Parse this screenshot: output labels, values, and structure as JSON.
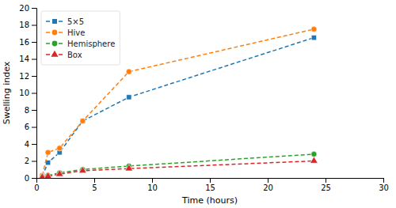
{
  "chart_data": {
    "type": "line",
    "xlabel": "Time (hours)",
    "ylabel": "Swelling index",
    "xlim": [
      0,
      30
    ],
    "ylim": [
      0,
      20
    ],
    "xticks": [
      0,
      5,
      10,
      15,
      20,
      25,
      30
    ],
    "yticks": [
      0,
      2,
      4,
      6,
      8,
      10,
      12,
      14,
      16,
      18,
      20
    ],
    "legend": "upper left",
    "line_style": "dashed",
    "series": [
      {
        "name": "5×5",
        "marker": "square",
        "x": [
          0.5,
          1,
          2,
          4,
          8,
          24
        ],
        "values": [
          0.2,
          1.8,
          3.0,
          6.7,
          9.5,
          16.5
        ]
      },
      {
        "name": "Hive",
        "marker": "circle",
        "x": [
          0.5,
          1,
          2,
          4,
          8,
          24
        ],
        "values": [
          0.3,
          3.0,
          3.5,
          6.7,
          12.5,
          17.5
        ]
      },
      {
        "name": "Hemisphere",
        "marker": "circle",
        "x": [
          0.5,
          1,
          2,
          4,
          8,
          24
        ],
        "values": [
          0.1,
          0.3,
          0.6,
          1.0,
          1.4,
          2.8
        ]
      },
      {
        "name": "Box",
        "marker": "triangle",
        "x": [
          0.5,
          1,
          2,
          4,
          8,
          24
        ],
        "values": [
          0.08,
          0.2,
          0.45,
          0.85,
          1.1,
          2.0
        ]
      }
    ]
  }
}
